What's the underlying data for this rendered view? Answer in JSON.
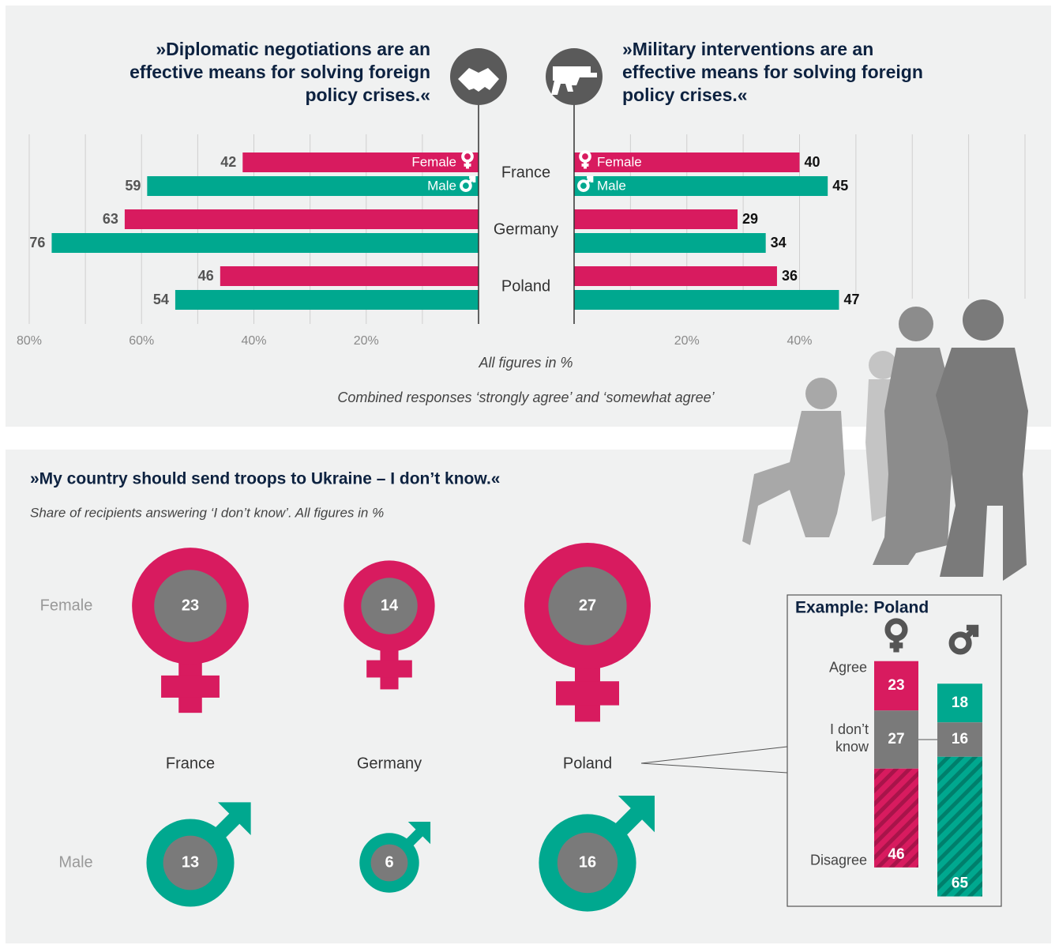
{
  "chart_data": [
    {
      "type": "bar",
      "categories": [
        "France",
        "Germany",
        "Poland"
      ],
      "left": {
        "title": [
          "»Diplomatic negotiations are an",
          "effective means for solving foreign",
          "policy crises.«"
        ],
        "series": [
          {
            "name": "Female",
            "color": "#d81b5f",
            "values": [
              42,
              63,
              46
            ]
          },
          {
            "name": "Male",
            "color": "#00a88f",
            "values": [
              59,
              76,
              54
            ]
          }
        ],
        "xlim": [
          0,
          80
        ],
        "xticks": [
          {
            "value": 80,
            "label": "80%"
          },
          {
            "value": 60,
            "label": "60%"
          },
          {
            "value": 40,
            "label": "40%"
          },
          {
            "value": 20,
            "label": "20%"
          }
        ],
        "grid_ticks": [
          10,
          20,
          30,
          40,
          50,
          60,
          70,
          80
        ]
      },
      "right": {
        "title": [
          "»Military interventions are an",
          "effective means for solving foreign",
          "policy crises.«"
        ],
        "series": [
          {
            "name": "Female",
            "color": "#d81b5f",
            "values": [
              40,
              29,
              36
            ]
          },
          {
            "name": "Male",
            "color": "#00a88f",
            "values": [
              45,
              34,
              47
            ]
          }
        ],
        "xlim": [
          0,
          80
        ],
        "xticks": [
          {
            "value": 20,
            "label": "20%"
          },
          {
            "value": 40,
            "label": "40%"
          }
        ],
        "grid_ticks": [
          10,
          20,
          30,
          40,
          50,
          60,
          70,
          80
        ]
      },
      "notes": [
        "All figures in %",
        "Combined responses ‘strongly agree’ and ‘somewhat agree’"
      ]
    },
    {
      "type": "symbol",
      "title": "»My country should send troops to Ukraine – I don’t know.«",
      "subtitle": "Share of recipients answering ‘I don’t know’. All figures in %",
      "categories": [
        "France",
        "Germany",
        "Poland"
      ],
      "series": [
        {
          "name": "Female",
          "color": "#d81b5f",
          "values": [
            23,
            14,
            27
          ]
        },
        {
          "name": "Male",
          "color": "#00a88f",
          "values": [
            13,
            6,
            16
          ]
        }
      ],
      "inner_color": "#7a7a7a"
    },
    {
      "type": "stacked",
      "title": "Example: Poland",
      "column_colors": [
        "#d81b5f",
        "#00a88f"
      ],
      "series": [
        {
          "name": "Agree",
          "values": [
            23,
            18
          ]
        },
        {
          "name": "I don’t know",
          "color": "#7a7a7a",
          "values": [
            27,
            16
          ]
        },
        {
          "name": "Disagree",
          "values": [
            46,
            65
          ],
          "pattern": "hatched"
        }
      ]
    }
  ]
}
